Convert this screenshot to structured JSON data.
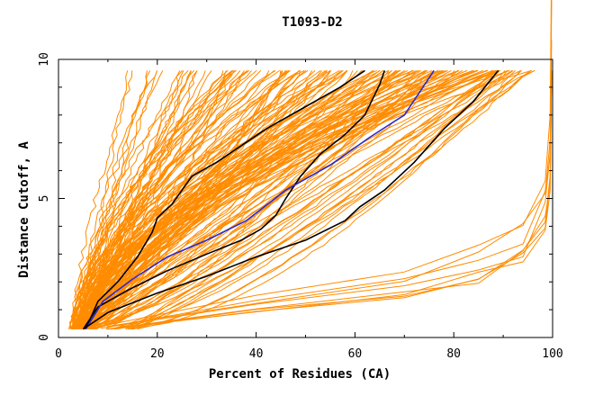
{
  "chart_data": {
    "type": "line",
    "title": "T1093-D2",
    "xlabel": "Percent of Residues (CA)",
    "ylabel": "Distance Cutoff, A",
    "xlim": [
      0,
      100
    ],
    "ylim": [
      0,
      10
    ],
    "x_ticks": [
      "0",
      "20",
      "40",
      "60",
      "80",
      "100"
    ],
    "y_ticks": [
      "0",
      "5",
      "10"
    ],
    "grid": false,
    "legend": "none",
    "colors": {
      "bundle": "#ff8c00",
      "highlight_black": "#000000",
      "highlight_blue": "#2a2ad0"
    },
    "highlight_series": [
      {
        "color": "#000000",
        "points": [
          [
            5.5,
            0.3
          ],
          [
            8,
            1.3
          ],
          [
            12,
            2.0
          ],
          [
            16,
            2.9
          ],
          [
            19,
            3.8
          ],
          [
            20,
            4.3
          ],
          [
            23,
            4.8
          ],
          [
            27,
            5.8
          ],
          [
            32,
            6.3
          ],
          [
            37,
            6.9
          ],
          [
            42,
            7.5
          ],
          [
            50,
            8.3
          ],
          [
            57,
            9.0
          ],
          [
            62,
            9.6
          ]
        ]
      },
      {
        "color": "#000000",
        "points": [
          [
            5,
            0.3
          ],
          [
            8,
            1.1
          ],
          [
            14,
            1.7
          ],
          [
            22,
            2.4
          ],
          [
            30,
            3.0
          ],
          [
            37,
            3.5
          ],
          [
            41,
            3.9
          ],
          [
            44,
            4.4
          ],
          [
            46,
            5.0
          ],
          [
            49,
            5.8
          ],
          [
            53,
            6.6
          ],
          [
            58,
            7.3
          ],
          [
            62,
            8.0
          ],
          [
            65,
            9.1
          ],
          [
            66,
            9.6
          ]
        ]
      },
      {
        "color": "#2a2ad0",
        "points": [
          [
            5.5,
            0.3
          ],
          [
            9,
            1.3
          ],
          [
            15,
            2.1
          ],
          [
            22,
            2.9
          ],
          [
            30,
            3.5
          ],
          [
            38,
            4.2
          ],
          [
            46,
            5.3
          ],
          [
            55,
            6.2
          ],
          [
            63,
            7.2
          ],
          [
            70,
            8.0
          ],
          [
            73,
            8.8
          ],
          [
            76,
            9.6
          ]
        ]
      },
      {
        "color": "#000000",
        "points": [
          [
            5,
            0.3
          ],
          [
            10,
            0.9
          ],
          [
            20,
            1.6
          ],
          [
            30,
            2.2
          ],
          [
            40,
            2.9
          ],
          [
            50,
            3.5
          ],
          [
            58,
            4.2
          ],
          [
            61,
            4.7
          ],
          [
            66,
            5.3
          ],
          [
            72,
            6.3
          ],
          [
            78,
            7.5
          ],
          [
            84,
            8.5
          ],
          [
            89,
            9.6
          ]
        ]
      }
    ]
  }
}
